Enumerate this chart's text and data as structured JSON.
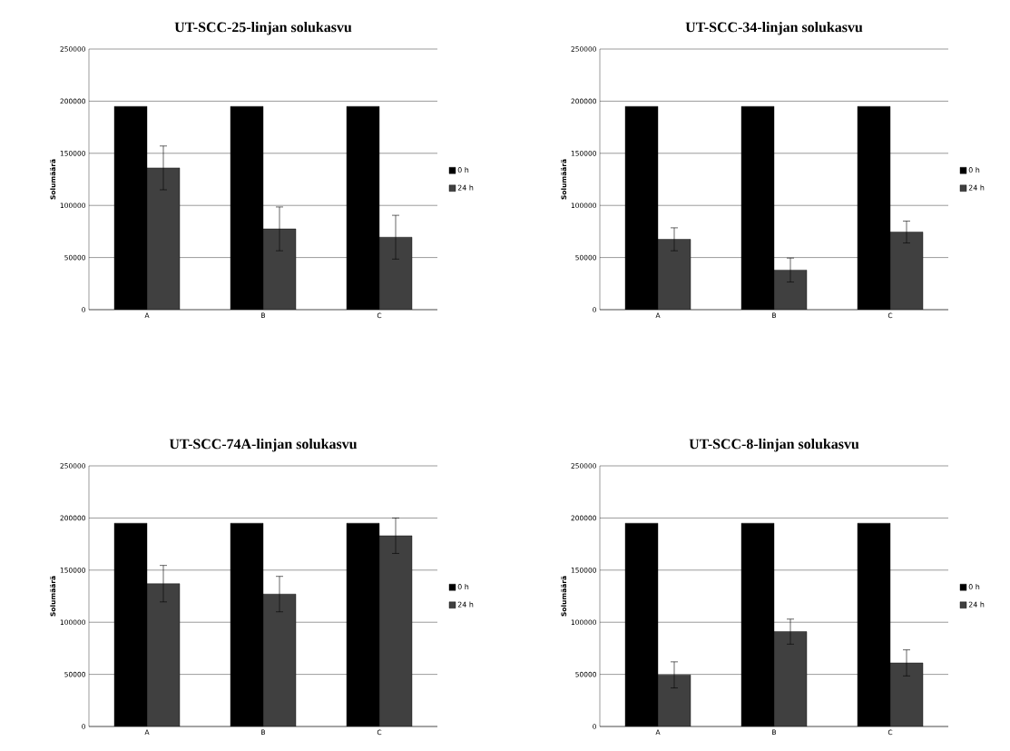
{
  "chart_data": [
    {
      "type": "bar",
      "title": "UT-SCC-25-linjan solukasvu",
      "ylabel": "Solumäärä",
      "categories": [
        "A",
        "B",
        "C"
      ],
      "series": [
        {
          "name": "0 h",
          "color": "#000000",
          "values": [
            195000,
            195000,
            195000
          ]
        },
        {
          "name": "24 h",
          "color": "#404040",
          "values": [
            136000,
            77500,
            69500
          ],
          "errors": [
            21000,
            21000,
            21000
          ]
        }
      ],
      "ylim": [
        0,
        250000
      ],
      "yticks": [
        0,
        50000,
        100000,
        150000,
        200000,
        250000
      ],
      "grid": "y",
      "legend": "right"
    },
    {
      "type": "bar",
      "title": "UT-SCC-34-linjan solukasvu",
      "ylabel": "Solumäärä",
      "categories": [
        "A",
        "B",
        "C"
      ],
      "series": [
        {
          "name": "0 h",
          "color": "#000000",
          "values": [
            195000,
            195000,
            195000
          ]
        },
        {
          "name": "24 h",
          "color": "#404040",
          "values": [
            67500,
            38000,
            74500
          ],
          "errors": [
            11000,
            11500,
            10500
          ]
        }
      ],
      "ylim": [
        0,
        250000
      ],
      "yticks": [
        0,
        50000,
        100000,
        150000,
        200000,
        250000
      ],
      "grid": "y",
      "legend": "right"
    },
    {
      "type": "bar",
      "title": "UT-SCC-74A-linjan solukasvu",
      "ylabel": "Solumäärä",
      "categories": [
        "A",
        "B",
        "C"
      ],
      "series": [
        {
          "name": "0 h",
          "color": "#000000",
          "values": [
            195000,
            195000,
            195000
          ]
        },
        {
          "name": "24 h",
          "color": "#404040",
          "values": [
            137000,
            127000,
            183000
          ],
          "errors": [
            17500,
            17000,
            17000
          ]
        }
      ],
      "ylim": [
        0,
        250000
      ],
      "yticks": [
        0,
        50000,
        100000,
        150000,
        200000,
        250000
      ],
      "grid": "y",
      "legend": "right"
    },
    {
      "type": "bar",
      "title": "UT-SCC-8-linjan solukasvu",
      "ylabel": "Solumäärä",
      "categories": [
        "A",
        "B",
        "C"
      ],
      "series": [
        {
          "name": "0 h",
          "color": "#000000",
          "values": [
            195000,
            195000,
            195000
          ]
        },
        {
          "name": "24 h",
          "color": "#404040",
          "values": [
            49500,
            91000,
            61000
          ],
          "errors": [
            12500,
            12000,
            12500
          ]
        }
      ],
      "ylim": [
        0,
        250000
      ],
      "yticks": [
        0,
        50000,
        100000,
        150000,
        200000,
        250000
      ],
      "grid": "y",
      "legend": "right"
    }
  ]
}
